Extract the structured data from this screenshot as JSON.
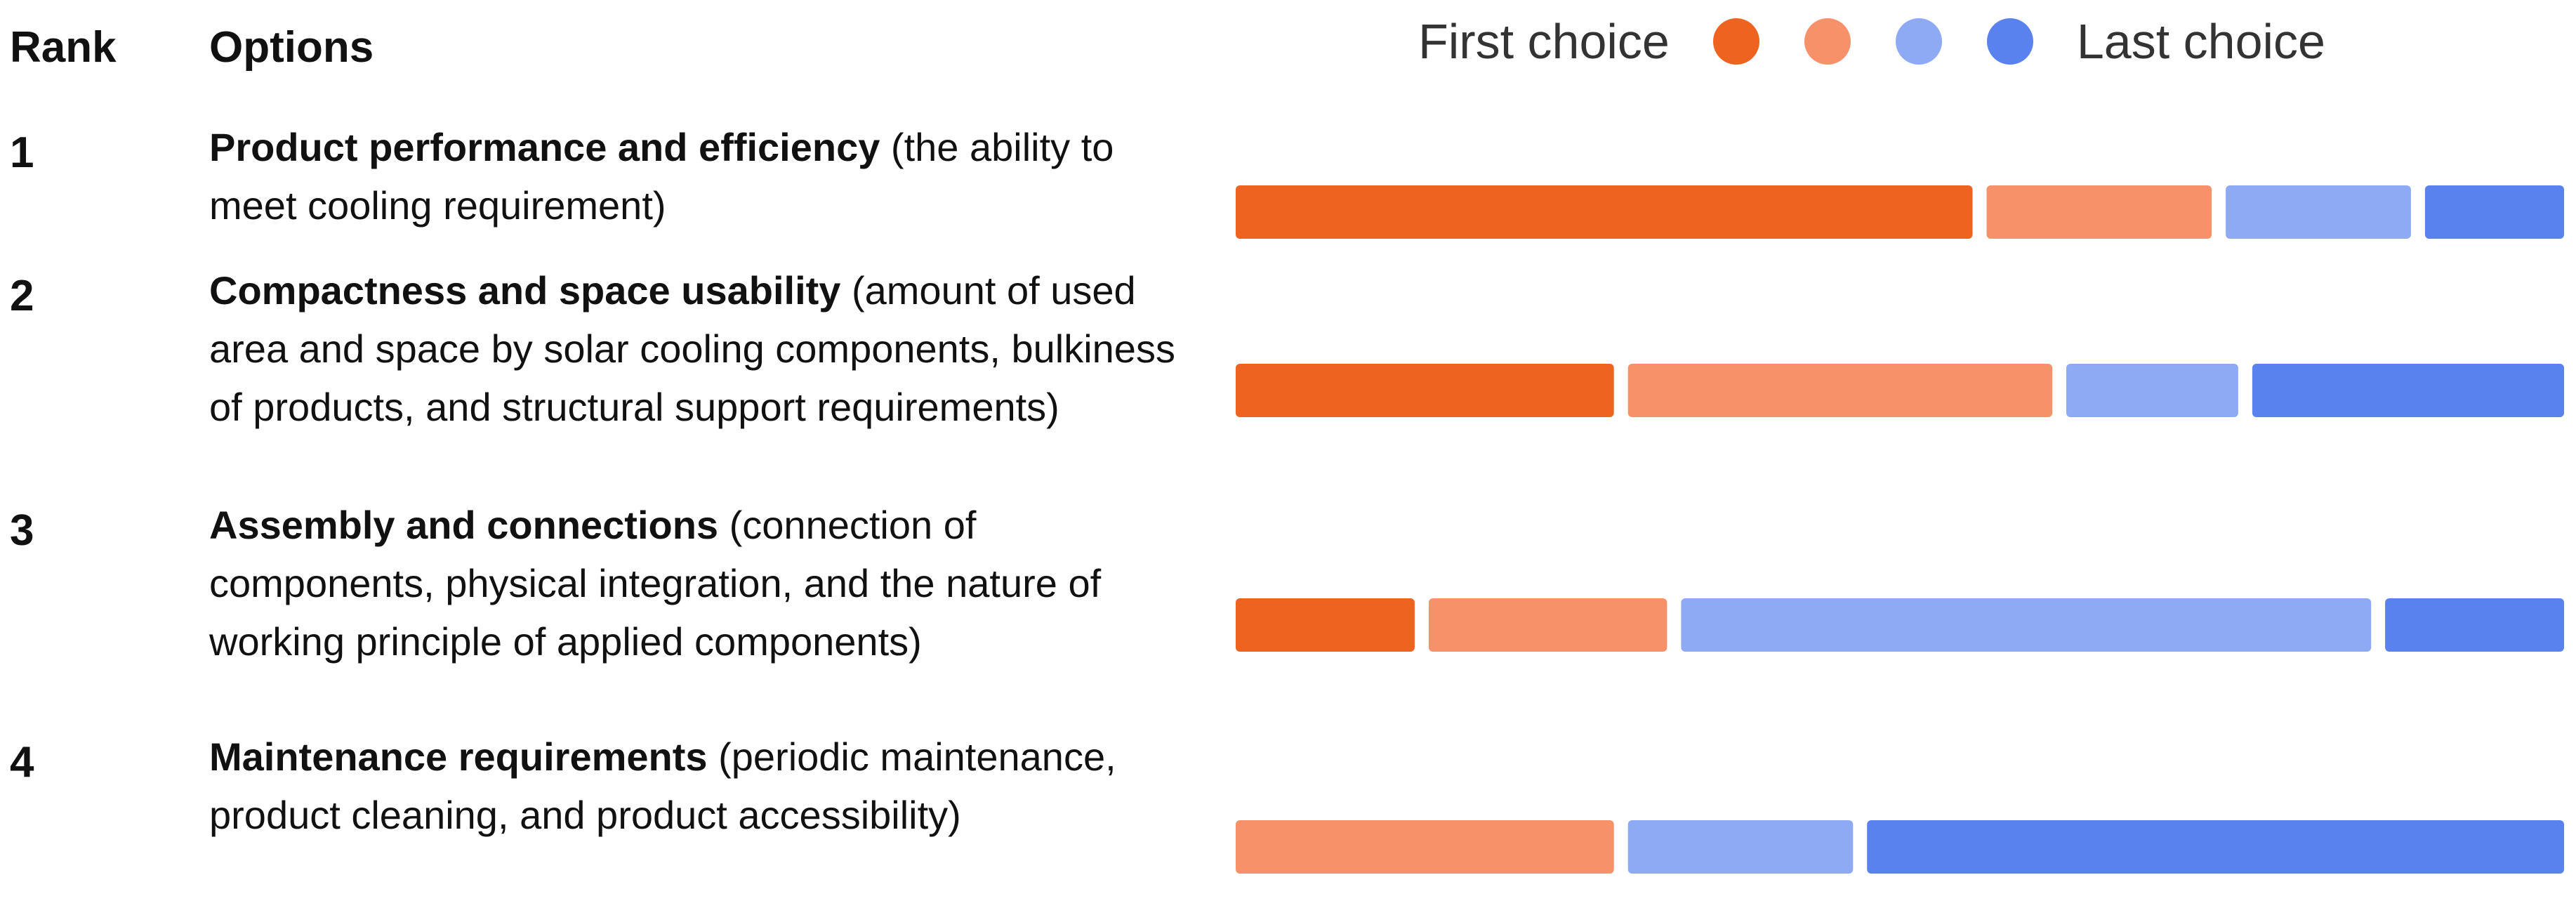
{
  "headers": {
    "rank": "Rank",
    "options": "Options"
  },
  "legend": {
    "first_label": "First choice",
    "last_label": "Last choice",
    "colors": [
      "#ee6320",
      "#f7916a",
      "#8faaf5",
      "#5a82ef"
    ]
  },
  "rows": [
    {
      "rank": "1",
      "name": "Product performance and efficiency",
      "description": " (the ability to meet cooling requirement)"
    },
    {
      "rank": "2",
      "name": "Compactness and space usability",
      "description": " (amount of used area and space by solar cooling components, bulkiness of products, and structural support requirements)"
    },
    {
      "rank": "3",
      "name": "Assembly and connections",
      "description": " (connection of components, physical integration, and the nature of working principle of applied components)"
    },
    {
      "rank": "4",
      "name": "Maintenance requirements",
      "description": " (periodic maintenance, product cleaning, and product accessibility)"
    }
  ],
  "chart_data": {
    "type": "bar",
    "stacked": true,
    "orientation": "horizontal",
    "categories": [
      "Product performance and efficiency",
      "Compactness and space usability",
      "Assembly and connections",
      "Maintenance requirements"
    ],
    "series": [
      {
        "name": "First choice",
        "values": [
          56,
          29,
          14,
          0
        ]
      },
      {
        "name": "",
        "values": [
          18,
          33,
          19,
          29
        ]
      },
      {
        "name": "",
        "values": [
          15,
          14,
          53,
          18
        ]
      },
      {
        "name": "Last choice",
        "values": [
          11,
          24,
          14,
          53
        ]
      }
    ],
    "xlim": [
      0,
      100
    ],
    "grid": false,
    "legend_position": "top-right"
  }
}
